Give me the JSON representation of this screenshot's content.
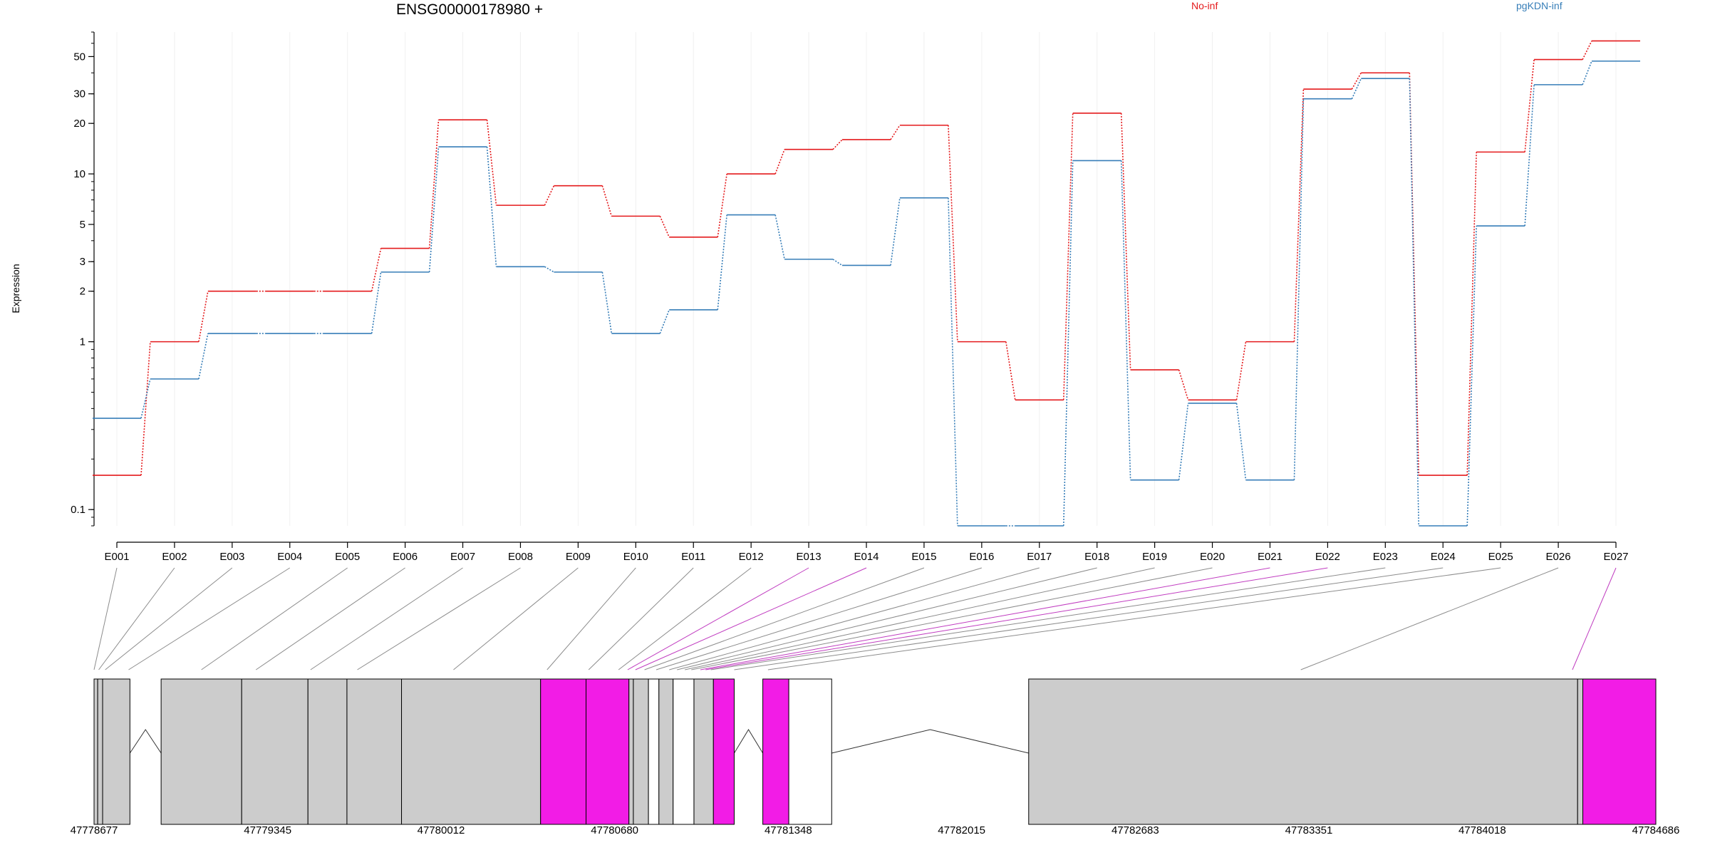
{
  "title": "ENSG00000178980 +",
  "ylabel": "Expression",
  "legend": [
    {
      "name": "No-inf",
      "color": "#E41A1C"
    },
    {
      "name": "pgKDN-inf",
      "color": "#377EB8"
    }
  ],
  "chart_data": {
    "type": "line",
    "y_scale": "log",
    "ylim": [
      0.08,
      70
    ],
    "y_ticks": [
      "0.1",
      "1",
      "2",
      "3",
      "5",
      "10",
      "20",
      "30",
      "50"
    ],
    "categories": [
      "E001",
      "E002",
      "E003",
      "E004",
      "E005",
      "E006",
      "E007",
      "E008",
      "E009",
      "E010",
      "E011",
      "E012",
      "E013",
      "E014",
      "E015",
      "E016",
      "E017",
      "E018",
      "E019",
      "E020",
      "E021",
      "E022",
      "E023",
      "E024",
      "E025",
      "E026",
      "E027"
    ],
    "series": [
      {
        "name": "No-inf",
        "color": "#E41A1C",
        "values": [
          0.16,
          1.0,
          2.0,
          2.0,
          2.0,
          3.6,
          21,
          6.5,
          8.5,
          5.6,
          4.2,
          10,
          14,
          16,
          19.5,
          1.0,
          0.45,
          23,
          0.68,
          0.45,
          1.0,
          32,
          40,
          0.16,
          13.5,
          48,
          62
        ]
      },
      {
        "name": "pgKDN-inf",
        "color": "#377EB8",
        "values": [
          0.35,
          0.6,
          1.12,
          1.12,
          1.12,
          2.6,
          14.5,
          2.8,
          2.6,
          1.12,
          1.55,
          5.7,
          3.1,
          2.85,
          7.2,
          0.08,
          0.08,
          12,
          0.15,
          0.43,
          0.15,
          28,
          37,
          0.08,
          4.9,
          34,
          47
        ]
      }
    ],
    "exon_highlight": [
      false,
      false,
      false,
      false,
      false,
      false,
      false,
      false,
      false,
      false,
      false,
      false,
      true,
      true,
      false,
      false,
      false,
      false,
      false,
      false,
      true,
      true,
      false,
      false,
      false,
      false,
      true
    ],
    "gene_model": {
      "start": 47778677,
      "end": 47784686,
      "coord_ticks": [
        "47778677",
        "47779345",
        "47780012",
        "47780680",
        "47781348",
        "47782015",
        "47782683",
        "47783351",
        "47784018",
        "47784686"
      ],
      "exons": [
        {
          "s": 47778677,
          "e": 47778691,
          "hl": false
        },
        {
          "s": 47778691,
          "e": 47778710,
          "hl": false
        },
        {
          "s": 47778710,
          "e": 47778815,
          "hl": false
        },
        {
          "s": 47778935,
          "e": 47779245,
          "hl": false
        },
        {
          "s": 47779245,
          "e": 47779500,
          "hl": false
        },
        {
          "s": 47779500,
          "e": 47779650,
          "hl": false
        },
        {
          "s": 47779650,
          "e": 47779860,
          "hl": false
        },
        {
          "s": 47779860,
          "e": 47780395,
          "hl": false
        },
        {
          "s": 47780395,
          "e": 47780570,
          "hl": true
        },
        {
          "s": 47780570,
          "e": 47780735,
          "hl": true
        },
        {
          "s": 47780735,
          "e": 47780752,
          "hl": false
        },
        {
          "s": 47780752,
          "e": 47780810,
          "hl": false
        },
        {
          "s": 47780850,
          "e": 47780905,
          "hl": false
        },
        {
          "s": 47780985,
          "e": 47781060,
          "hl": false
        },
        {
          "s": 47781060,
          "e": 47781140,
          "hl": true
        },
        {
          "s": 47781250,
          "e": 47781350,
          "hl": true
        },
        {
          "s": 47782273,
          "e": 47784385,
          "hl": false
        },
        {
          "s": 47784385,
          "e": 47784405,
          "hl": false
        },
        {
          "s": 47784405,
          "e": 47784686,
          "hl": true
        }
      ],
      "introns": [
        {
          "s": 47778815,
          "e": 47778935
        },
        {
          "s": 47781140,
          "e": 47781250
        },
        {
          "s": 47781515,
          "e": 47782273
        }
      ],
      "connector_targets": [
        47778677,
        47778695,
        47778720,
        47778810,
        47779090,
        47779300,
        47779510,
        47779690,
        47780060,
        47780420,
        47780580,
        47780695,
        47780730,
        47780760,
        47780795,
        47780840,
        47780890,
        47780920,
        47780950,
        47780975,
        47781010,
        47781030,
        47781050,
        47781140,
        47781270,
        47783320,
        47784365
      ]
    }
  }
}
